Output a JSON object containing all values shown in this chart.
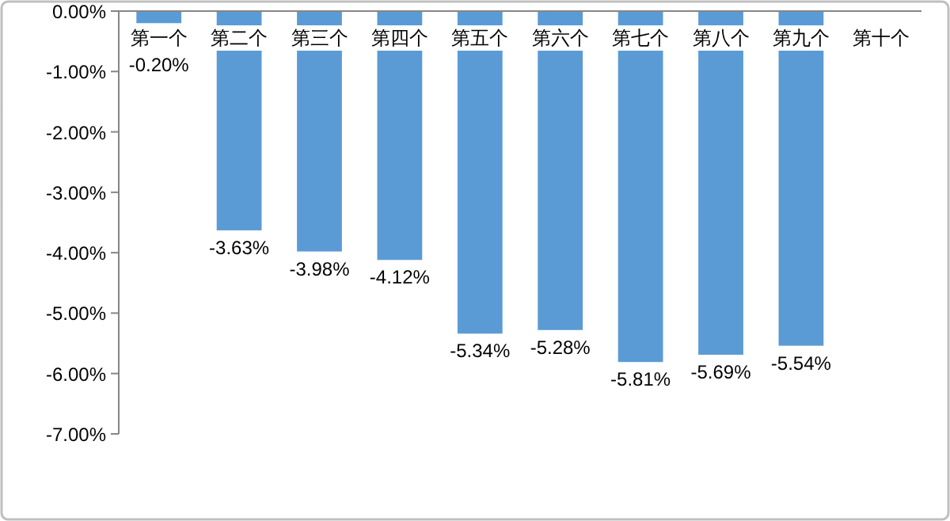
{
  "chart_data": {
    "type": "bar",
    "categories": [
      "第一个",
      "第二个",
      "第三个",
      "第四个",
      "第五个",
      "第六个",
      "第七个",
      "第八个",
      "第九个",
      "第十个"
    ],
    "values": [
      -0.2,
      -3.63,
      -3.98,
      -4.12,
      -5.34,
      -5.28,
      -5.81,
      -5.69,
      -5.54,
      null
    ],
    "value_labels": [
      "-0.20%",
      "-3.63%",
      "-3.98%",
      "-4.12%",
      "-5.34%",
      "-5.28%",
      "-5.81%",
      "-5.69%",
      "-5.54%",
      null
    ],
    "color": "#5b9bd5",
    "ylim": [
      -7,
      0
    ],
    "yticks": [
      {
        "value": 0,
        "label": "0.00%"
      },
      {
        "value": -1,
        "label": "-1.00%"
      },
      {
        "value": -2,
        "label": "-2.00%"
      },
      {
        "value": -3,
        "label": "-3.00%"
      },
      {
        "value": -4,
        "label": "-4.00%"
      },
      {
        "value": -5,
        "label": "-5.00%"
      },
      {
        "value": -6,
        "label": "-6.00%"
      },
      {
        "value": -7,
        "label": "-7.00%"
      }
    ]
  }
}
